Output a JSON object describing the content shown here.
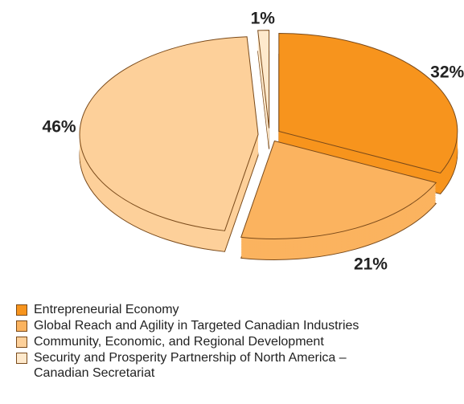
{
  "chart_data": {
    "type": "pie",
    "categories": [
      "Entrepreneurial Economy",
      "Global Reach and Agility in Targeted Canadian Industries",
      "Community, Economic, and Regional Development",
      "Security and Prosperity Partnership of North America – Canadian Secretariat"
    ],
    "values": [
      32,
      21,
      46,
      1
    ],
    "value_labels": [
      "32%",
      "21%",
      "46%",
      "1%"
    ],
    "colors": [
      "#f7941d",
      "#fbb35f",
      "#fdd09a",
      "#fee9cc"
    ],
    "legend": "bottom"
  }
}
